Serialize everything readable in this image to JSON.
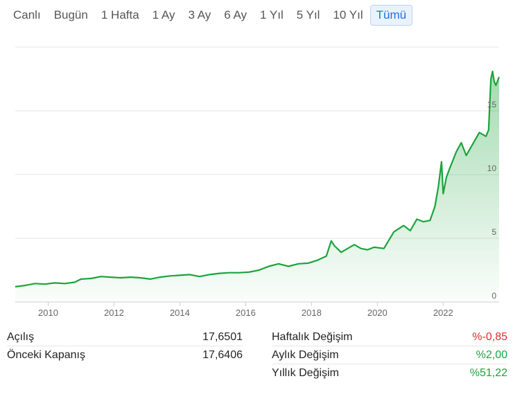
{
  "tabs": [
    {
      "label": "Canlı",
      "active": false
    },
    {
      "label": "Bugün",
      "active": false
    },
    {
      "label": "1 Hafta",
      "active": false
    },
    {
      "label": "1 Ay",
      "active": false
    },
    {
      "label": "3 Ay",
      "active": false
    },
    {
      "label": "6 Ay",
      "active": false
    },
    {
      "label": "1 Yıl",
      "active": false
    },
    {
      "label": "5 Yıl",
      "active": false
    },
    {
      "label": "10 Yıl",
      "active": false
    },
    {
      "label": "Tümü",
      "active": true
    }
  ],
  "colors": {
    "line": "#1aa33a",
    "fill": "#1aa33a",
    "negative": "#e02b2b",
    "positive": "#1aa33a",
    "accent": "#1a73e8"
  },
  "chart_data": {
    "type": "area",
    "x_ticks": [
      "2010",
      "2012",
      "2014",
      "2016",
      "2018",
      "2020",
      "2022"
    ],
    "y_ticks": [
      "0",
      "5",
      "10",
      "15"
    ],
    "x_range": [
      2009.0,
      2023.7
    ],
    "ylim": [
      0,
      20
    ],
    "grid": true,
    "series": [
      {
        "x": [
          2009.0,
          2009.3,
          2009.6,
          2009.9,
          2010.2,
          2010.5,
          2010.8,
          2011.0,
          2011.3,
          2011.6,
          2011.9,
          2012.2,
          2012.5,
          2012.8,
          2013.1,
          2013.4,
          2013.7,
          2014.0,
          2014.3,
          2014.6,
          2014.9,
          2015.2,
          2015.5,
          2015.8,
          2016.1,
          2016.4,
          2016.7,
          2017.0,
          2017.3,
          2017.6,
          2017.9,
          2018.2,
          2018.45,
          2018.6,
          2018.7,
          2018.9,
          2019.1,
          2019.3,
          2019.5,
          2019.7,
          2019.9,
          2020.2,
          2020.5,
          2020.8,
          2021.0,
          2021.2,
          2021.4,
          2021.6,
          2021.75,
          2021.85,
          2021.95,
          2022.0,
          2022.1,
          2022.2,
          2022.4,
          2022.55,
          2022.7,
          2022.9,
          2023.1,
          2023.3,
          2023.38,
          2023.45,
          2023.5,
          2023.55,
          2023.6,
          2023.7
        ],
        "y": [
          1.2,
          1.3,
          1.45,
          1.4,
          1.5,
          1.45,
          1.55,
          1.8,
          1.85,
          2.0,
          1.95,
          1.9,
          1.95,
          1.9,
          1.8,
          1.95,
          2.05,
          2.1,
          2.15,
          2.0,
          2.15,
          2.25,
          2.3,
          2.3,
          2.35,
          2.5,
          2.8,
          3.0,
          2.8,
          3.0,
          3.05,
          3.3,
          3.6,
          4.8,
          4.4,
          3.9,
          4.2,
          4.5,
          4.2,
          4.1,
          4.3,
          4.2,
          5.5,
          6.0,
          5.6,
          6.5,
          6.3,
          6.4,
          7.5,
          9.0,
          11.0,
          8.5,
          9.8,
          10.5,
          11.8,
          12.5,
          11.5,
          12.4,
          13.3,
          13.0,
          13.5,
          17.5,
          18.1,
          17.3,
          17.0,
          17.65
        ]
      }
    ]
  },
  "stats_left": [
    {
      "label": "Açılış",
      "value": "17,6501"
    },
    {
      "label": "Önceki Kapanış",
      "value": "17,6406"
    }
  ],
  "stats_right": [
    {
      "label": "Haftalık Değişim",
      "value": "%-0,85",
      "sign": "neg"
    },
    {
      "label": "Aylık Değişim",
      "value": "%2,00",
      "sign": "pos"
    },
    {
      "label": "Yıllık Değişim",
      "value": "%51,22",
      "sign": "pos"
    }
  ]
}
